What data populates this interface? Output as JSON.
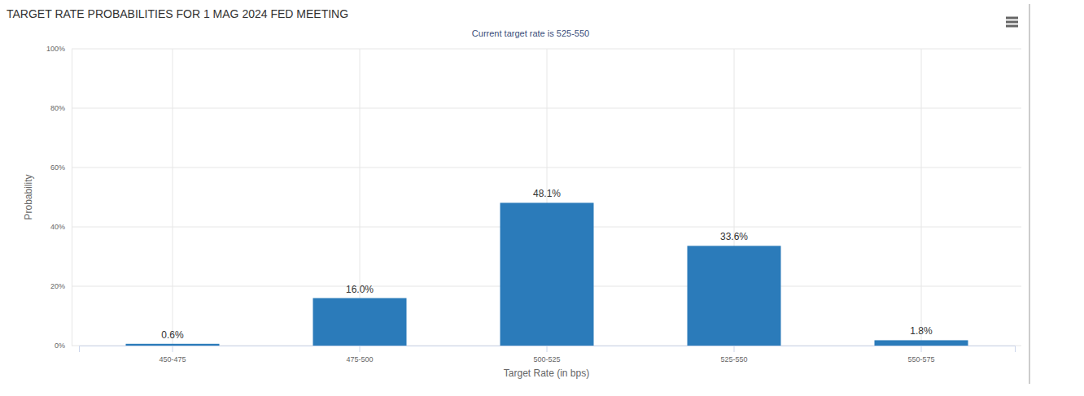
{
  "chart_data": {
    "type": "bar",
    "title": "TARGET RATE PROBABILITIES FOR 1 MAG 2024 FED MEETING",
    "subtitle": "Current target rate is 525-550",
    "x_label": "Target Rate (in bps)",
    "y_label": "Probability",
    "categories": [
      "450-475",
      "475-500",
      "500-525",
      "525-550",
      "550-575"
    ],
    "values": [
      0.6,
      16.0,
      48.1,
      33.6,
      1.8
    ],
    "value_labels": [
      "0.6%",
      "16.0%",
      "48.1%",
      "33.6%",
      "1.8%"
    ],
    "color": "#2b7bba",
    "ylim": [
      0,
      100
    ],
    "yticks": [
      {
        "value": 0,
        "label": "0%"
      },
      {
        "value": 20,
        "label": "20%"
      },
      {
        "value": 40,
        "label": "40%"
      },
      {
        "value": 60,
        "label": "60%"
      },
      {
        "value": 80,
        "label": "80%"
      },
      {
        "value": 100,
        "label": "100%"
      }
    ],
    "grid": true,
    "data_labels": true
  }
}
